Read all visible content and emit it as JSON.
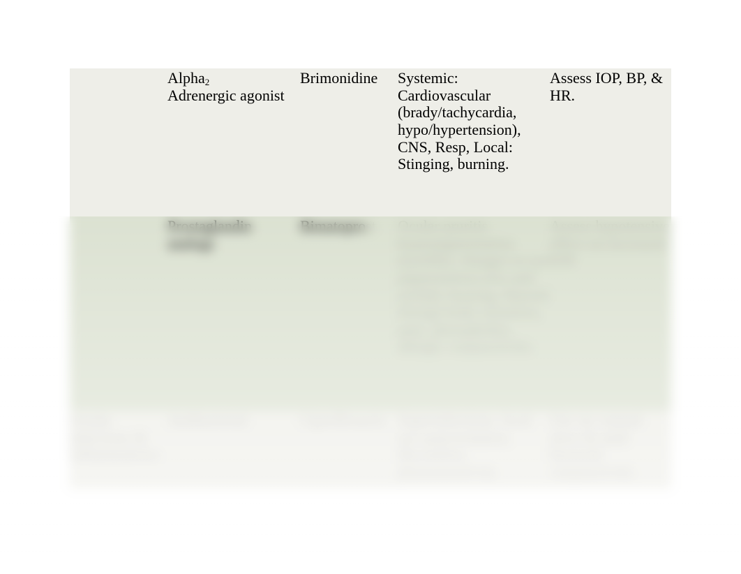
{
  "table": {
    "background_row_odd": "#eeeee8",
    "background_row_even": "#dce2d2",
    "text_color": "#000000",
    "font_family": "Times New Roman",
    "font_size_pt": 17,
    "rows": [
      {
        "col1": "",
        "col2_prefix": "Alpha",
        "col2_sub": "2",
        "col2_rest": "Adrenergic agonist",
        "col3": "Brimonidine",
        "col4": "Systemic: Cardiovascular (brady/tachycardia, hypo/hypertension), CNS, Resp, Local: Stinging, burning.",
        "col5": "Assess IOP, BP, & HR."
      },
      {
        "col1": "",
        "col2": "Prostaglandin analogs",
        "col3_clear": "Bimatopro",
        "col3_faded": "st",
        "col4": "Ocular pruritis hyperpigmentation (eyelids), changes in eye pigmentation (iris and eyelid), burning, blurred foreign body sensation, pain, photophobia, allergic conjunctivitis.",
        "col5": "Assess hypotensive effect on increased IOP."
      },
      {
        "col1": "Ocular Infections & Inflammations",
        "col2": "Antibacterial",
        "col3": "Ciprofloxacin",
        "col4": "Superinfections, local eye pain/irritation, discomfort, photosensitivity.",
        "col5": "Use on corneal ulcer & mild bacterial conjunctivitis."
      }
    ]
  }
}
